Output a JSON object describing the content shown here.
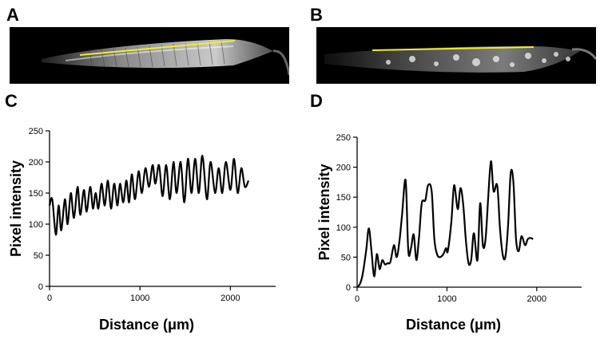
{
  "panels": {
    "a": "A",
    "b": "B",
    "c": "C",
    "d": "D"
  },
  "line_color": "#f4ec2a",
  "chart_data": [
    {
      "type": "line",
      "panel": "C",
      "xlabel": "Distance (μm)",
      "ylabel": "Pixel intensity",
      "xlim": [
        0,
        2500
      ],
      "ylim": [
        0,
        250
      ],
      "xticks": [
        0,
        1000,
        2000
      ],
      "yticks": [
        0,
        50,
        100,
        150,
        200,
        250
      ],
      "grid": false,
      "series": [
        {
          "x": [
            0,
            30,
            70,
            100,
            130,
            170,
            200,
            235,
            270,
            310,
            340,
            380,
            410,
            450,
            480,
            510,
            540,
            575,
            610,
            645,
            680,
            715,
            750,
            780,
            815,
            850,
            880,
            910,
            945,
            985,
            1020,
            1060,
            1100,
            1140,
            1170,
            1210,
            1250,
            1290,
            1330,
            1370,
            1405,
            1450,
            1490,
            1530,
            1570,
            1610,
            1650,
            1690,
            1740,
            1780,
            1830,
            1870,
            1910,
            1950,
            2000,
            2040,
            2080,
            2120,
            2160,
            2200
          ],
          "y": [
            130,
            140,
            83,
            130,
            90,
            140,
            100,
            150,
            110,
            160,
            115,
            155,
            120,
            160,
            125,
            150,
            125,
            165,
            130,
            170,
            125,
            165,
            130,
            165,
            135,
            170,
            135,
            180,
            140,
            185,
            150,
            190,
            160,
            195,
            165,
            195,
            145,
            195,
            140,
            200,
            150,
            200,
            135,
            205,
            150,
            205,
            150,
            210,
            140,
            200,
            150,
            190,
            150,
            200,
            155,
            205,
            150,
            190,
            160,
            170
          ]
        }
      ]
    },
    {
      "type": "line",
      "panel": "D",
      "xlabel": "Distance (μm)",
      "ylabel": "Pixel intensity",
      "xlim": [
        0,
        2500
      ],
      "ylim": [
        0,
        250
      ],
      "xticks": [
        0,
        1000,
        2000
      ],
      "yticks": [
        0,
        50,
        100,
        150,
        200,
        250
      ],
      "grid": false,
      "series": [
        {
          "x": [
            0,
            30,
            60,
            100,
            130,
            160,
            190,
            220,
            250,
            280,
            310,
            340,
            370,
            410,
            440,
            470,
            500,
            540,
            570,
            600,
            630,
            660,
            690,
            720,
            760,
            790,
            830,
            860,
            890,
            920,
            960,
            990,
            1010,
            1050,
            1080,
            1120,
            1150,
            1180,
            1210,
            1240,
            1270,
            1300,
            1340,
            1370,
            1400,
            1430,
            1460,
            1490,
            1520,
            1560,
            1590,
            1620,
            1650,
            1680,
            1710,
            1740,
            1770,
            1800,
            1830,
            1870,
            1900,
            1930,
            1960
          ],
          "y": [
            0,
            5,
            20,
            60,
            98,
            60,
            18,
            55,
            30,
            45,
            38,
            40,
            42,
            70,
            50,
            75,
            120,
            178,
            60,
            65,
            88,
            45,
            85,
            140,
            145,
            170,
            160,
            80,
            55,
            50,
            55,
            65,
            60,
            110,
            170,
            130,
            165,
            140,
            80,
            40,
            45,
            90,
            45,
            140,
            70,
            80,
            150,
            210,
            160,
            170,
            100,
            55,
            50,
            100,
            190,
            175,
            80,
            60,
            85,
            70,
            80,
            82,
            80
          ]
        }
      ]
    }
  ]
}
